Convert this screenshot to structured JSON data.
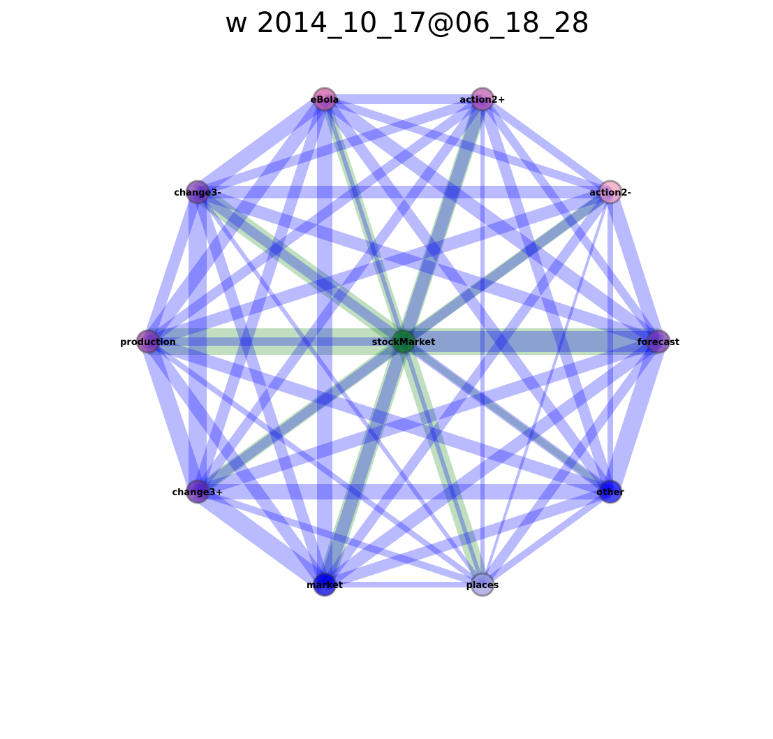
{
  "title": "w 2014_10_17@06_18_28",
  "nodes": [
    {
      "id": "eBola",
      "label": "eBola",
      "color": "#d060a0"
    },
    {
      "id": "action2+",
      "label": "action2+",
      "color": "#c060b0"
    },
    {
      "id": "action2-",
      "label": "action2-",
      "color": "#f0a0c0"
    },
    {
      "id": "forecast",
      "label": "forecast",
      "color": "#8040b0"
    },
    {
      "id": "other",
      "label": "other",
      "color": "#1010f0"
    },
    {
      "id": "places",
      "label": "places",
      "color": "#a0a0e0"
    },
    {
      "id": "market",
      "label": "market",
      "color": "#0000e0"
    },
    {
      "id": "change3+",
      "label": "change3+",
      "color": "#7030b0"
    },
    {
      "id": "production",
      "label": "production",
      "color": "#9040a0"
    },
    {
      "id": "change3-",
      "label": "change3-",
      "color": "#8040b0"
    },
    {
      "id": "stockMarket",
      "label": "stockMarket",
      "color": "#108020"
    }
  ],
  "edges": [
    {
      "source": "production",
      "target": "forecast",
      "weight": 38,
      "color": "green"
    },
    {
      "source": "stockMarket",
      "target": "forecast",
      "weight": 30,
      "color": "blue"
    },
    {
      "source": "change3-",
      "target": "stockMarket",
      "weight": 26,
      "color": "green"
    },
    {
      "source": "action2+",
      "target": "stockMarket",
      "weight": 22,
      "color": "green"
    },
    {
      "source": "stockMarket",
      "target": "market",
      "weight": 24,
      "color": "green"
    },
    {
      "source": "stockMarket",
      "target": "places",
      "weight": 22,
      "color": "green"
    },
    {
      "source": "stockMarket",
      "target": "change3+",
      "weight": 18,
      "color": "green"
    },
    {
      "source": "stockMarket",
      "target": "action2-",
      "weight": 16,
      "color": "green"
    },
    {
      "source": "eBola",
      "target": "stockMarket",
      "weight": 14,
      "color": "green"
    },
    {
      "source": "stockMarket",
      "target": "other",
      "weight": 10,
      "color": "green"
    },
    {
      "source": "eBola",
      "target": "action2+",
      "weight": 14,
      "color": "blue"
    },
    {
      "source": "action2+",
      "target": "action2-",
      "weight": 12,
      "color": "blue"
    },
    {
      "source": "action2-",
      "target": "forecast",
      "weight": 20,
      "color": "blue"
    },
    {
      "source": "forecast",
      "target": "other",
      "weight": 26,
      "color": "blue"
    },
    {
      "source": "other",
      "target": "places",
      "weight": 10,
      "color": "blue"
    },
    {
      "source": "places",
      "target": "market",
      "weight": 8,
      "color": "blue"
    },
    {
      "source": "market",
      "target": "change3+",
      "weight": 26,
      "color": "blue"
    },
    {
      "source": "change3+",
      "target": "production",
      "weight": 24,
      "color": "blue"
    },
    {
      "source": "production",
      "target": "change3-",
      "weight": 16,
      "color": "blue"
    },
    {
      "source": "change3-",
      "target": "eBola",
      "weight": 22,
      "color": "blue"
    },
    {
      "source": "eBola",
      "target": "action2-",
      "weight": 12,
      "color": "blue"
    },
    {
      "source": "eBola",
      "target": "forecast",
      "weight": 20,
      "color": "blue"
    },
    {
      "source": "eBola",
      "target": "other",
      "weight": 16,
      "color": "blue"
    },
    {
      "source": "eBola",
      "target": "places",
      "weight": 6,
      "color": "blue"
    },
    {
      "source": "eBola",
      "target": "market",
      "weight": 22,
      "color": "blue"
    },
    {
      "source": "eBola",
      "target": "change3+",
      "weight": 16,
      "color": "blue"
    },
    {
      "source": "eBola",
      "target": "production",
      "weight": 20,
      "color": "blue"
    },
    {
      "source": "action2+",
      "target": "forecast",
      "weight": 12,
      "color": "blue"
    },
    {
      "source": "action2+",
      "target": "other",
      "weight": 16,
      "color": "blue"
    },
    {
      "source": "action2+",
      "target": "places",
      "weight": 6,
      "color": "blue"
    },
    {
      "source": "action2+",
      "target": "market",
      "weight": 18,
      "color": "blue"
    },
    {
      "source": "action2+",
      "target": "change3+",
      "weight": 14,
      "color": "blue"
    },
    {
      "source": "action2+",
      "target": "production",
      "weight": 14,
      "color": "blue"
    },
    {
      "source": "action2+",
      "target": "change3-",
      "weight": 14,
      "color": "blue"
    },
    {
      "source": "action2-",
      "target": "other",
      "weight": 8,
      "color": "blue"
    },
    {
      "source": "action2-",
      "target": "places",
      "weight": 4,
      "color": "blue"
    },
    {
      "source": "action2-",
      "target": "market",
      "weight": 14,
      "color": "blue"
    },
    {
      "source": "action2-",
      "target": "change3+",
      "weight": 14,
      "color": "blue"
    },
    {
      "source": "action2-",
      "target": "production",
      "weight": 18,
      "color": "blue"
    },
    {
      "source": "action2-",
      "target": "change3-",
      "weight": 18,
      "color": "blue"
    },
    {
      "source": "forecast",
      "target": "places",
      "weight": 14,
      "color": "blue"
    },
    {
      "source": "forecast",
      "target": "market",
      "weight": 18,
      "color": "blue"
    },
    {
      "source": "forecast",
      "target": "change3+",
      "weight": 18,
      "color": "blue"
    },
    {
      "source": "forecast",
      "target": "change3-",
      "weight": 18,
      "color": "blue"
    },
    {
      "source": "other",
      "target": "market",
      "weight": 16,
      "color": "blue"
    },
    {
      "source": "other",
      "target": "change3+",
      "weight": 22,
      "color": "blue"
    },
    {
      "source": "other",
      "target": "production",
      "weight": 18,
      "color": "blue"
    },
    {
      "source": "other",
      "target": "change3-",
      "weight": 14,
      "color": "blue"
    },
    {
      "source": "places",
      "target": "change3+",
      "weight": 10,
      "color": "blue"
    },
    {
      "source": "places",
      "target": "production",
      "weight": 8,
      "color": "blue"
    },
    {
      "source": "places",
      "target": "change3-",
      "weight": 6,
      "color": "blue"
    },
    {
      "source": "market",
      "target": "production",
      "weight": 18,
      "color": "blue"
    },
    {
      "source": "market",
      "target": "change3-",
      "weight": 16,
      "color": "blue"
    },
    {
      "source": "change3+",
      "target": "change3-",
      "weight": 26,
      "color": "blue"
    },
    {
      "source": "stockMarket",
      "target": "production",
      "weight": 12,
      "color": "blue"
    }
  ]
}
